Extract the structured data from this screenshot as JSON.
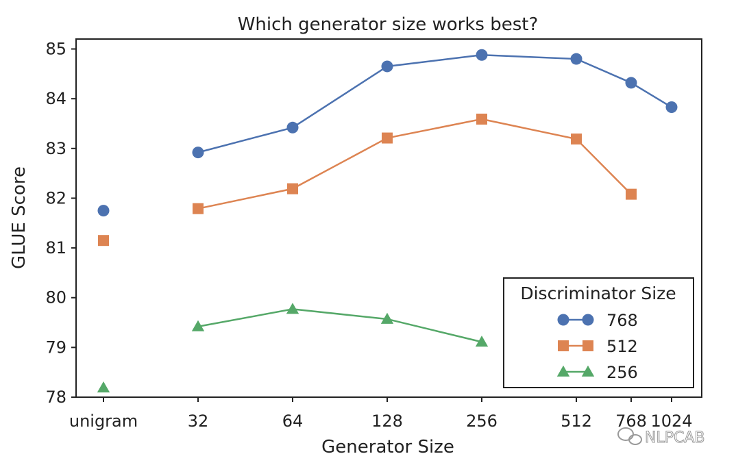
{
  "chart_data": {
    "type": "line",
    "title": "Which generator size works best?",
    "xlabel": "Generator Size",
    "ylabel": "GLUE Score",
    "categories": [
      "unigram",
      "32",
      "64",
      "128",
      "256",
      "512",
      "768",
      "1024"
    ],
    "x": [
      -1,
      32,
      64,
      128,
      256,
      512,
      768,
      1024
    ],
    "ylim": [
      78,
      85.2
    ],
    "yticks": [
      "78",
      "79",
      "80",
      "81",
      "82",
      "83",
      "84",
      "85"
    ],
    "legend": {
      "title": "Discriminator Size",
      "position": "lower-right"
    },
    "series": [
      {
        "name": "768",
        "color": "#4c72b0",
        "marker": "circle",
        "unigram": 81.75,
        "points": [
          [
            32,
            82.92
          ],
          [
            64,
            83.42
          ],
          [
            128,
            84.65
          ],
          [
            256,
            84.88
          ],
          [
            512,
            84.8
          ],
          [
            768,
            84.32
          ],
          [
            1024,
            83.83
          ]
        ]
      },
      {
        "name": "512",
        "color": "#dd8452",
        "marker": "square",
        "unigram": 81.15,
        "points": [
          [
            32,
            81.79
          ],
          [
            64,
            82.19
          ],
          [
            128,
            83.21
          ],
          [
            256,
            83.59
          ],
          [
            512,
            83.19
          ],
          [
            768,
            82.08
          ]
        ]
      },
      {
        "name": "256",
        "color": "#55a868",
        "marker": "triangle",
        "unigram": 78.19,
        "points": [
          [
            32,
            79.42
          ],
          [
            64,
            79.77
          ],
          [
            128,
            79.57
          ],
          [
            256,
            79.11
          ]
        ]
      }
    ]
  },
  "watermark": {
    "text": "NLPCAB",
    "icon": "wechat-icon"
  }
}
